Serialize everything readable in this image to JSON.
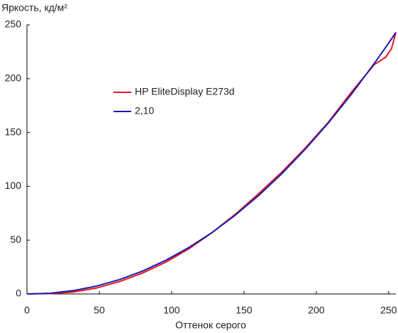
{
  "chart_data": {
    "type": "line",
    "ylabel": "Яркость, кд/м²",
    "xlabel": "Оттенок серого",
    "x": [
      0,
      16,
      32,
      48,
      64,
      80,
      96,
      112,
      128,
      144,
      160,
      176,
      192,
      208,
      224,
      240,
      248,
      252,
      255
    ],
    "series": [
      {
        "name": "HP EliteDisplay E273d",
        "color": "#e8141e",
        "values": [
          0,
          0.3,
          1.8,
          5.5,
          11.5,
          19.5,
          29.5,
          42,
          57,
          74,
          93,
          113,
          135,
          159,
          187,
          213,
          220,
          228,
          243
        ]
      },
      {
        "name": "2,10",
        "color": "#1a1ab4",
        "values": [
          0,
          0.7,
          3.1,
          7.3,
          13.3,
          21.3,
          31.3,
          43.2,
          57.1,
          73.2,
          91.3,
          111.5,
          133.9,
          158.4,
          185.1,
          214,
          229.2,
          237,
          243
        ]
      }
    ],
    "xlim": [
      0,
      255
    ],
    "ylim": [
      0,
      250
    ],
    "xticks": [
      0,
      50,
      100,
      150,
      200,
      250
    ],
    "yticks": [
      0,
      50,
      100,
      150,
      200,
      250
    ],
    "grid": false
  }
}
